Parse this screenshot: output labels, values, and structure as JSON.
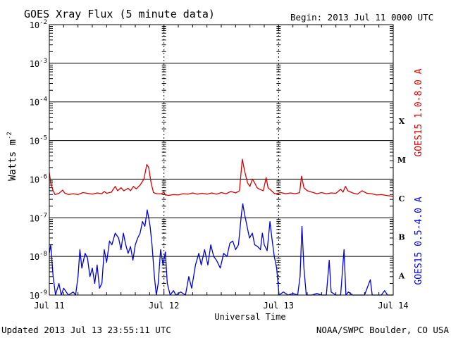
{
  "header": {
    "title": "GOES Xray Flux (5 minute data)",
    "begin": "Begin:  2013 Jul 11 0000 UTC"
  },
  "footer": {
    "updated": "Updated 2013 Jul 13 23:55:11 UTC",
    "credit": "NOAA/SWPC Boulder, CO USA"
  },
  "chart_data": {
    "type": "line",
    "title": "GOES Xray Flux (5 minute data)",
    "xlabel": "Universal Time",
    "ylabel": "Watts m",
    "ylabel_sup": "-2",
    "y_scale": "log",
    "ylim": [
      1e-09,
      0.01
    ],
    "xlim": [
      0,
      72
    ],
    "x_unit": "hours since 2013 Jul 11 0000 UTC",
    "y_ticks": [
      {
        "base": "10",
        "exp": "-2"
      },
      {
        "base": "10",
        "exp": "-3"
      },
      {
        "base": "10",
        "exp": "-4"
      },
      {
        "base": "10",
        "exp": "-5"
      },
      {
        "base": "10",
        "exp": "-6"
      },
      {
        "base": "10",
        "exp": "-7"
      },
      {
        "base": "10",
        "exp": "-8"
      },
      {
        "base": "10",
        "exp": "-9"
      }
    ],
    "x_ticks": [
      "Jul 11",
      "Jul 12",
      "Jul 13",
      "Jul 14"
    ],
    "flare_classes": [
      "X",
      "M",
      "C",
      "B",
      "A"
    ],
    "grid": true,
    "series": [
      {
        "name": "GOES15 1.0-8.0 A",
        "color": "#dd0000",
        "points": [
          [
            0,
            1.5e-06
          ],
          [
            0.3,
            8e-07
          ],
          [
            0.8,
            5e-07
          ],
          [
            1.2,
            4e-07
          ],
          [
            2,
            4.3e-07
          ],
          [
            2.8,
            5.2e-07
          ],
          [
            3.2,
            4.4e-07
          ],
          [
            4,
            4e-07
          ],
          [
            5,
            4.2e-07
          ],
          [
            6,
            4e-07
          ],
          [
            7,
            4.5e-07
          ],
          [
            8,
            4.3e-07
          ],
          [
            9,
            4.1e-07
          ],
          [
            10,
            4.4e-07
          ],
          [
            11,
            4.2e-07
          ],
          [
            11.5,
            4.8e-07
          ],
          [
            12,
            4.3e-07
          ],
          [
            13,
            4.6e-07
          ],
          [
            13.8,
            6.5e-07
          ],
          [
            14.3,
            5e-07
          ],
          [
            15,
            6e-07
          ],
          [
            15.6,
            5e-07
          ],
          [
            16.5,
            5.8e-07
          ],
          [
            17,
            5e-07
          ],
          [
            17.6,
            6.5e-07
          ],
          [
            18.2,
            5.6e-07
          ],
          [
            19,
            7e-07
          ],
          [
            19.8,
            1e-06
          ],
          [
            20.4,
            2.4e-06
          ],
          [
            20.8,
            2e-06
          ],
          [
            21.3,
            8e-07
          ],
          [
            21.8,
            4.5e-07
          ],
          [
            22.5,
            4.2e-07
          ],
          [
            23.5,
            4.2e-07
          ],
          [
            24,
            4.6e-07
          ],
          [
            24.3,
            3.9e-07
          ],
          [
            25,
            3.8e-07
          ],
          [
            26,
            4e-07
          ],
          [
            27,
            3.9e-07
          ],
          [
            28,
            4.2e-07
          ],
          [
            29,
            4.1e-07
          ],
          [
            30,
            4.4e-07
          ],
          [
            31,
            4.1e-07
          ],
          [
            32,
            4.3e-07
          ],
          [
            33,
            4.1e-07
          ],
          [
            34,
            4.4e-07
          ],
          [
            35,
            4.1e-07
          ],
          [
            36,
            4.5e-07
          ],
          [
            37,
            4.2e-07
          ],
          [
            38,
            4.8e-07
          ],
          [
            39,
            4.4e-07
          ],
          [
            39.8,
            5e-07
          ],
          [
            40.4,
            3.3e-06
          ],
          [
            40.9,
            1.6e-06
          ],
          [
            41.5,
            8e-07
          ],
          [
            42,
            6.5e-07
          ],
          [
            42.5,
            1e-06
          ],
          [
            43,
            8e-07
          ],
          [
            43.5,
            6e-07
          ],
          [
            44,
            5.5e-07
          ],
          [
            44.8,
            5e-07
          ],
          [
            45.4,
            1.1e-06
          ],
          [
            45.8,
            6e-07
          ],
          [
            46.5,
            5e-07
          ],
          [
            47.2,
            4.2e-07
          ],
          [
            47.8,
            4.3e-07
          ],
          [
            48.5,
            4.5e-07
          ],
          [
            49.5,
            4.2e-07
          ],
          [
            50.5,
            4.4e-07
          ],
          [
            51.5,
            4.2e-07
          ],
          [
            52.4,
            4.5e-07
          ],
          [
            52.8,
            1.2e-06
          ],
          [
            53.3,
            6e-07
          ],
          [
            54,
            5e-07
          ],
          [
            55,
            4.6e-07
          ],
          [
            56,
            4.2e-07
          ],
          [
            57,
            4.5e-07
          ],
          [
            58,
            4.2e-07
          ],
          [
            59,
            4.4e-07
          ],
          [
            60,
            4.3e-07
          ],
          [
            61,
            5.5e-07
          ],
          [
            61.5,
            4.6e-07
          ],
          [
            62,
            6.5e-07
          ],
          [
            62.5,
            5e-07
          ],
          [
            63.5,
            4.4e-07
          ],
          [
            64.5,
            4.1e-07
          ],
          [
            65.5,
            5e-07
          ],
          [
            66.5,
            4.3e-07
          ],
          [
            67.5,
            4.2e-07
          ],
          [
            68.5,
            3.9e-07
          ],
          [
            69.5,
            4e-07
          ],
          [
            70.5,
            3.8e-07
          ],
          [
            72,
            3.6e-07
          ]
        ]
      },
      {
        "name": "GOES15 0.5-4.0 A",
        "color": "#0000dd",
        "points": [
          [
            0,
            1.2e-08
          ],
          [
            0.3,
            2e-08
          ],
          [
            0.8,
            3e-09
          ],
          [
            1.3,
            1e-09
          ],
          [
            2,
            2e-09
          ],
          [
            2.5,
            1e-09
          ],
          [
            3,
            1.5e-09
          ],
          [
            4,
            1e-09
          ],
          [
            5,
            1.2e-09
          ],
          [
            5.5,
            1e-09
          ],
          [
            6,
            3e-09
          ],
          [
            6.4,
            1.5e-08
          ],
          [
            6.8,
            5e-09
          ],
          [
            7.5,
            1.2e-08
          ],
          [
            8,
            9e-09
          ],
          [
            8.5,
            3e-09
          ],
          [
            9,
            5e-09
          ],
          [
            9.5,
            2e-09
          ],
          [
            10,
            6e-09
          ],
          [
            10.5,
            1.5e-09
          ],
          [
            11,
            2e-09
          ],
          [
            11.5,
            1.5e-08
          ],
          [
            12,
            7e-09
          ],
          [
            12.6,
            2.5e-08
          ],
          [
            13.1,
            2e-08
          ],
          [
            13.8,
            4e-08
          ],
          [
            14.5,
            3e-08
          ],
          [
            15,
            1.5e-08
          ],
          [
            15.5,
            4e-08
          ],
          [
            16,
            2e-08
          ],
          [
            16.5,
            1.2e-08
          ],
          [
            17,
            1.8e-08
          ],
          [
            17.5,
            8e-09
          ],
          [
            18,
            2e-08
          ],
          [
            18.5,
            3e-08
          ],
          [
            19,
            4e-08
          ],
          [
            19.5,
            8e-08
          ],
          [
            20,
            6e-08
          ],
          [
            20.5,
            1.6e-07
          ],
          [
            20.8,
            1e-07
          ],
          [
            21.1,
            6e-08
          ],
          [
            21.5,
            2e-08
          ],
          [
            22,
            3e-09
          ],
          [
            22.4,
            1e-09
          ],
          [
            22.8,
            2e-09
          ],
          [
            23.3,
            1.5e-08
          ],
          [
            23.8,
            6e-09
          ],
          [
            24.3,
            1.3e-08
          ],
          [
            24.7,
            2e-09
          ],
          [
            25.3,
            1e-09
          ],
          [
            26,
            1.3e-09
          ],
          [
            26.5,
            1e-09
          ],
          [
            27.5,
            1.2e-09
          ],
          [
            28.5,
            1e-09
          ],
          [
            29.2,
            3e-09
          ],
          [
            29.8,
            1.5e-09
          ],
          [
            30.6,
            6e-09
          ],
          [
            31.3,
            1.2e-08
          ],
          [
            31.8,
            6e-09
          ],
          [
            32.5,
            1.5e-08
          ],
          [
            33.2,
            6e-09
          ],
          [
            33.8,
            2e-08
          ],
          [
            34.4,
            1e-08
          ],
          [
            35,
            8e-09
          ],
          [
            35.8,
            5e-09
          ],
          [
            36.5,
            1.2e-08
          ],
          [
            37.2,
            1e-08
          ],
          [
            37.8,
            2.2e-08
          ],
          [
            38.4,
            2.5e-08
          ],
          [
            39,
            1.5e-08
          ],
          [
            39.6,
            2e-08
          ],
          [
            40.2,
            1.2e-07
          ],
          [
            40.5,
            2.3e-07
          ],
          [
            40.9,
            1.2e-07
          ],
          [
            41.4,
            6e-08
          ],
          [
            41.9,
            3e-08
          ],
          [
            42.5,
            4e-08
          ],
          [
            43,
            2e-08
          ],
          [
            43.6,
            1.8e-08
          ],
          [
            44.2,
            1.5e-08
          ],
          [
            44.6,
            4e-08
          ],
          [
            45,
            2e-08
          ],
          [
            45.6,
            1.4e-08
          ],
          [
            46.2,
            8e-08
          ],
          [
            46.6,
            3e-08
          ],
          [
            47.1,
            1e-08
          ],
          [
            47.6,
            5e-09
          ],
          [
            48.1,
            1e-09
          ],
          [
            49,
            1.2e-09
          ],
          [
            50,
            1e-09
          ],
          [
            51,
            1.1e-09
          ],
          [
            52,
            1e-09
          ],
          [
            52.5,
            3e-09
          ],
          [
            52.9,
            6e-08
          ],
          [
            53.3,
            5e-09
          ],
          [
            53.8,
            1e-09
          ],
          [
            55,
            1e-09
          ],
          [
            56,
            1.1e-09
          ],
          [
            57,
            1e-09
          ],
          [
            58,
            1e-09
          ],
          [
            58.6,
            8e-09
          ],
          [
            59,
            1.2e-09
          ],
          [
            60,
            1e-09
          ],
          [
            61,
            1e-09
          ],
          [
            61.7,
            1.5e-08
          ],
          [
            62.1,
            1e-09
          ],
          [
            62.6,
            1.2e-09
          ],
          [
            63.5,
            1e-09
          ],
          [
            65,
            1e-09
          ],
          [
            66,
            1e-09
          ],
          [
            67.2,
            2.5e-09
          ],
          [
            67.6,
            1e-09
          ],
          [
            68.5,
            1e-09
          ],
          [
            69.5,
            1e-09
          ],
          [
            70.2,
            1.3e-09
          ],
          [
            70.8,
            1e-09
          ],
          [
            72,
            1e-09
          ]
        ]
      }
    ]
  }
}
